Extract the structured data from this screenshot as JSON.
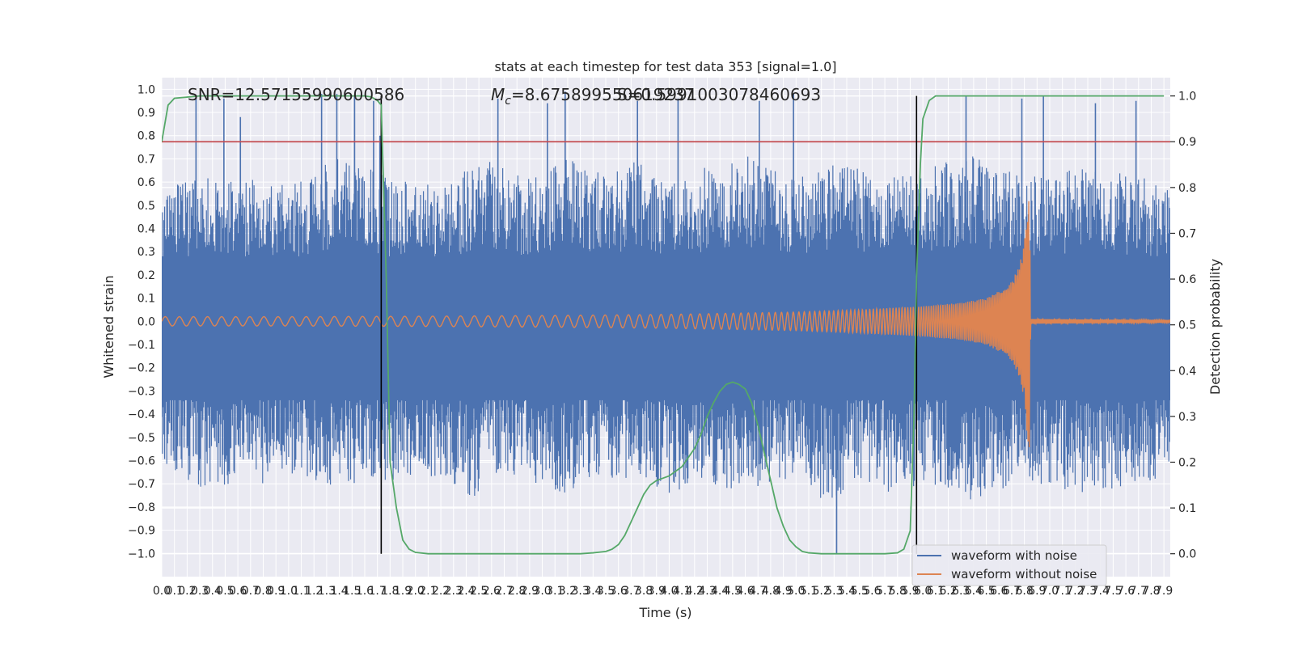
{
  "chart_data": {
    "type": "line",
    "title": "stats at each timestep for test data 353 [signal=1.0]",
    "xlabel": "Time (s)",
    "ylabel": "Whitened strain",
    "y2label": "Detection probability",
    "xlim": [
      0.0,
      7.95
    ],
    "ylim": [
      -1.1,
      1.05
    ],
    "y2lim": [
      -0.05,
      1.04
    ],
    "x_ticks": [
      0.0,
      0.1,
      0.2,
      0.3,
      0.4,
      0.5,
      0.6,
      0.7,
      0.8,
      0.9,
      1.0,
      1.1,
      1.2,
      1.3,
      1.4,
      1.5,
      1.6,
      1.7,
      1.8,
      1.9,
      2.0,
      2.1,
      2.2,
      2.3,
      2.4,
      2.5,
      2.6,
      2.7,
      2.8,
      2.9,
      3.0,
      3.1,
      3.2,
      3.3,
      3.4,
      3.5,
      3.6,
      3.7,
      3.8,
      3.9,
      4.0,
      4.1,
      4.2,
      4.3,
      4.4,
      4.5,
      4.6,
      4.7,
      4.8,
      4.9,
      5.0,
      5.1,
      5.2,
      5.3,
      5.4,
      5.5,
      5.6,
      5.7,
      5.8,
      5.9,
      6.0,
      6.1,
      6.2,
      6.3,
      6.4,
      6.5,
      6.6,
      6.7,
      6.8,
      6.9,
      7.0,
      7.1,
      7.2,
      7.3,
      7.4,
      7.5,
      7.6,
      7.7,
      7.8,
      7.9
    ],
    "y_ticks": [
      -1.0,
      -0.9,
      -0.8,
      -0.7,
      -0.6,
      -0.5,
      -0.4,
      -0.3,
      -0.2,
      -0.1,
      0.0,
      0.1,
      0.2,
      0.3,
      0.4,
      0.5,
      0.6,
      0.7,
      0.8,
      0.9,
      1.0
    ],
    "y_tick_labels": [
      "−1.0",
      "−0.9",
      "−0.8",
      "−0.7",
      "−0.6",
      "−0.5",
      "−0.4",
      "−0.3",
      "−0.2",
      "−0.1",
      "0.0",
      "0.1",
      "0.2",
      "0.3",
      "0.4",
      "0.5",
      "0.6",
      "0.7",
      "0.8",
      "0.9",
      "1.0"
    ],
    "y2_ticks": [
      0.0,
      0.1,
      0.2,
      0.3,
      0.4,
      0.5,
      0.6,
      0.7,
      0.8,
      0.9,
      1.0
    ],
    "y2_tick_labels": [
      "0.0",
      "0.1",
      "0.2",
      "0.3",
      "0.4",
      "0.5",
      "0.6",
      "0.7",
      "0.8",
      "0.9",
      "1.0"
    ],
    "grid": true,
    "legend_placement": "lower-right",
    "annotations": {
      "snr": "SNR=12.57155990600586",
      "mc": "=8.675899550619237",
      "mc_symbol": "M",
      "mc_sub": "c",
      "overlap": "S=0.5991003078460693"
    },
    "threshold": 0.9,
    "vertical_lines_x": [
      1.73,
      5.95
    ],
    "series": [
      {
        "name": "waveform with noise",
        "color": "#4c72b0",
        "envelope_x": [
          0.0,
          0.2,
          0.4,
          0.6,
          0.8,
          1.0,
          1.2,
          1.4,
          1.6,
          1.8,
          2.0,
          2.2,
          2.4,
          2.6,
          2.8,
          3.0,
          3.2,
          3.4,
          3.6,
          3.8,
          4.0,
          4.2,
          4.4,
          4.6,
          4.8,
          5.0,
          5.2,
          5.4,
          5.6,
          5.8,
          6.0,
          6.2,
          6.4,
          6.6,
          6.8,
          7.0,
          7.2,
          7.4,
          7.6,
          7.8,
          7.95
        ],
        "envelope_upper": [
          0.55,
          0.62,
          0.68,
          0.6,
          0.62,
          0.58,
          0.64,
          0.72,
          0.7,
          0.6,
          0.62,
          0.58,
          0.66,
          0.7,
          0.64,
          0.62,
          0.74,
          0.64,
          0.66,
          0.7,
          0.62,
          0.64,
          0.7,
          0.72,
          0.66,
          0.62,
          0.68,
          0.7,
          0.62,
          0.66,
          0.64,
          0.7,
          0.72,
          0.66,
          0.64,
          0.62,
          0.66,
          0.7,
          0.64,
          0.62,
          0.6
        ],
        "envelope_lower": [
          -0.6,
          -0.7,
          -0.75,
          -0.68,
          -0.7,
          -0.66,
          -0.7,
          -0.72,
          -0.68,
          -0.7,
          -0.66,
          -0.68,
          -0.78,
          -0.7,
          -0.66,
          -0.72,
          -0.74,
          -0.66,
          -0.68,
          -0.7,
          -0.74,
          -0.72,
          -0.76,
          -0.7,
          -0.72,
          -0.7,
          -0.78,
          -0.74,
          -0.72,
          -0.76,
          -0.7,
          -0.72,
          -0.78,
          -0.74,
          -0.72,
          -0.7,
          -0.74,
          -0.76,
          -0.7,
          -0.72,
          -0.62
        ],
        "spikes_x": [
          0.27,
          0.49,
          0.62,
          1.26,
          1.38,
          1.52,
          1.67,
          1.72,
          2.65,
          3.04,
          3.18,
          3.75,
          4.07,
          4.71,
          4.98,
          5.32,
          6.34,
          6.78,
          6.95,
          7.36,
          7.68
        ],
        "spikes_y": [
          0.97,
          0.96,
          0.88,
          0.98,
          0.98,
          0.97,
          0.95,
          0.8,
          0.96,
          0.94,
          0.99,
          0.95,
          0.96,
          0.95,
          0.98,
          -1.0,
          0.97,
          0.96,
          0.97,
          0.94,
          0.95
        ]
      },
      {
        "name": "waveform without noise",
        "color": "#dd8452",
        "amp_x": [
          0.0,
          1.0,
          2.0,
          3.0,
          4.0,
          5.0,
          5.5,
          6.0,
          6.3,
          6.5,
          6.6,
          6.7,
          6.76,
          6.8,
          6.82,
          6.84,
          6.85,
          7.95
        ],
        "amp": [
          0.02,
          0.02,
          0.022,
          0.025,
          0.03,
          0.04,
          0.05,
          0.065,
          0.08,
          0.1,
          0.13,
          0.17,
          0.24,
          0.34,
          0.48,
          0.58,
          0.01,
          0.005
        ]
      },
      {
        "name": "detection probability",
        "color": "#55a868",
        "axis": "right",
        "x": [
          0.0,
          0.05,
          0.1,
          0.3,
          0.6,
          1.0,
          1.3,
          1.6,
          1.65,
          1.7,
          1.73,
          1.77,
          1.8,
          1.85,
          1.9,
          1.95,
          2.0,
          2.1,
          2.3,
          2.6,
          3.0,
          3.3,
          3.4,
          3.5,
          3.55,
          3.6,
          3.65,
          3.7,
          3.75,
          3.8,
          3.85,
          3.9,
          3.95,
          4.0,
          4.1,
          4.2,
          4.25,
          4.3,
          4.35,
          4.4,
          4.45,
          4.5,
          4.55,
          4.6,
          4.65,
          4.7,
          4.75,
          4.8,
          4.85,
          4.9,
          4.95,
          5.0,
          5.05,
          5.1,
          5.2,
          5.3,
          5.5,
          5.7,
          5.8,
          5.85,
          5.9,
          5.93,
          5.95,
          5.98,
          6.0,
          6.05,
          6.1,
          6.3,
          6.6,
          7.0,
          7.5,
          7.9
        ],
        "y": [
          0.9,
          0.98,
          0.995,
          1.0,
          1.0,
          1.0,
          1.0,
          1.0,
          0.998,
          0.99,
          0.98,
          0.6,
          0.2,
          0.1,
          0.03,
          0.01,
          0.003,
          0.0,
          0.0,
          0.0,
          0.0,
          0.0,
          0.002,
          0.005,
          0.01,
          0.02,
          0.04,
          0.07,
          0.1,
          0.13,
          0.15,
          0.16,
          0.165,
          0.17,
          0.19,
          0.23,
          0.26,
          0.3,
          0.33,
          0.355,
          0.37,
          0.375,
          0.37,
          0.36,
          0.33,
          0.28,
          0.22,
          0.16,
          0.1,
          0.06,
          0.03,
          0.015,
          0.005,
          0.002,
          0.0,
          0.0,
          0.0,
          0.0,
          0.002,
          0.01,
          0.05,
          0.3,
          0.6,
          0.85,
          0.95,
          0.99,
          1.0,
          1.0,
          1.0,
          1.0,
          1.0,
          1.0
        ]
      }
    ]
  }
}
